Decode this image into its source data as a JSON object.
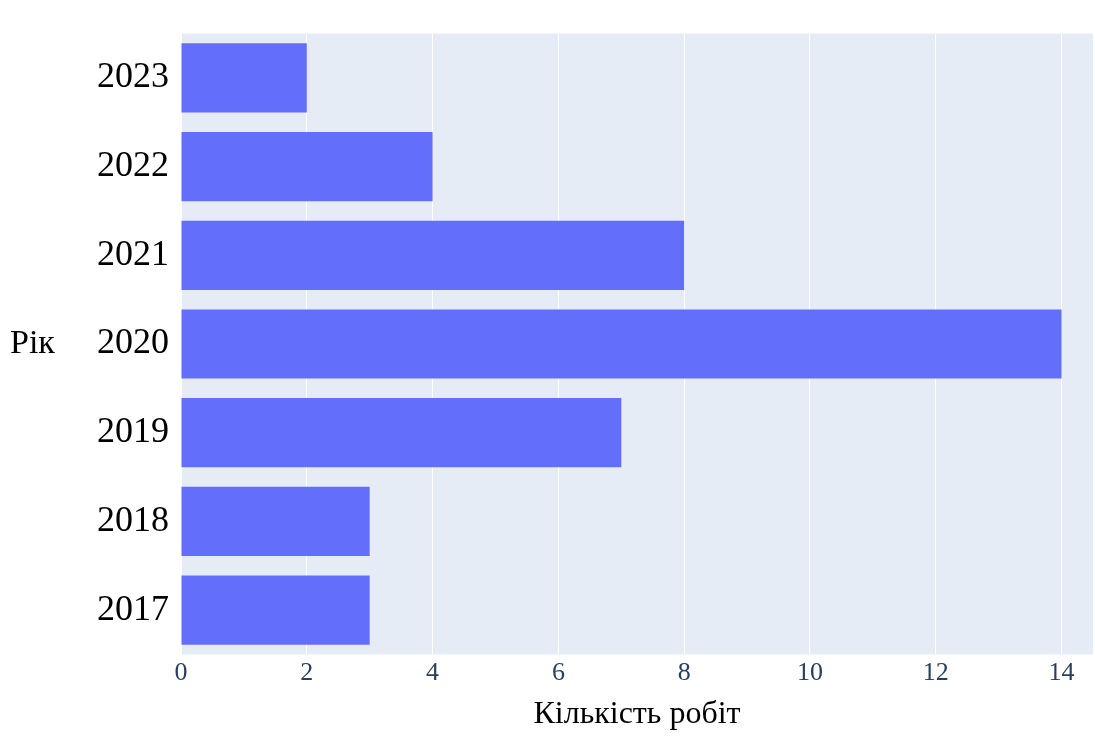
{
  "chart_data": {
    "type": "bar",
    "orientation": "horizontal",
    "xlabel": "Кількість робіт",
    "ylabel": "Рік",
    "categories": [
      "2023",
      "2022",
      "2021",
      "2020",
      "2019",
      "2018",
      "2017"
    ],
    "values": [
      2,
      4,
      8,
      14,
      7,
      3,
      3
    ],
    "color": "#636efa",
    "xlim": [
      0,
      14.5
    ],
    "xticks": [
      0,
      2,
      4,
      6,
      8,
      10,
      12,
      14
    ],
    "grid": "x"
  }
}
